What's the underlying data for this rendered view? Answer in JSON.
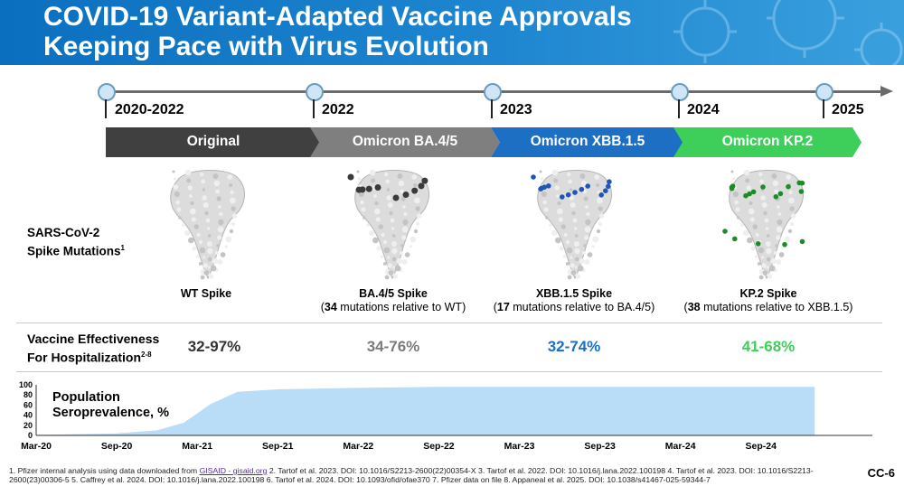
{
  "title": {
    "line1": "COVID-19 Variant-Adapted Vaccine Approvals",
    "line2": "Keeping Pace with Virus Evolution"
  },
  "timeline": {
    "years": [
      "2020-2022",
      "2022",
      "2023",
      "2024",
      "2025"
    ]
  },
  "variants": [
    {
      "label": "Original",
      "color": "#404040"
    },
    {
      "label": "Omicron BA.4/5",
      "color": "#7f7f7f"
    },
    {
      "label": "Omicron XBB.1.5",
      "color": "#1c6fc2"
    },
    {
      "label": "Omicron KP.2",
      "color": "#3ecf5a"
    }
  ],
  "spike_row_label": {
    "line1": "SARS-CoV-2",
    "line2": "Spike Mutations",
    "sup": "1"
  },
  "spikes": [
    {
      "name": "WT Spike",
      "count": "",
      "rest": "",
      "mutation_color": ""
    },
    {
      "name": "BA.4/5 Spike",
      "count": "34",
      "rest": " mutations relative to WT)",
      "mutation_color": "#3a3a3a"
    },
    {
      "name": "XBB.1.5 Spike",
      "count": "17",
      "rest": " mutations relative to BA.4/5)",
      "mutation_color": "#1f55b8"
    },
    {
      "name": "KP.2 Spike",
      "count": "38",
      "rest": " mutations relative to XBB.1.5)",
      "mutation_color": "#1e8a2a"
    }
  ],
  "ve_row_label": {
    "line1": "Vaccine Effectiveness",
    "line2": "For Hospitalization",
    "sup": "2-8"
  },
  "effectiveness": [
    {
      "value": "32-97%",
      "color": "#333333"
    },
    {
      "value": "34-76%",
      "color": "#7a7a7a"
    },
    {
      "value": "32-74%",
      "color": "#1c6fc2"
    },
    {
      "value": "41-68%",
      "color": "#3ecf5a"
    }
  ],
  "chart_data": {
    "type": "area",
    "title": "Population Seroprevalence, %",
    "ylim": [
      0,
      100
    ],
    "yticks": [
      0,
      20,
      40,
      60,
      80,
      100
    ],
    "xticks": [
      "Mar-20",
      "Sep-20",
      "Mar-21",
      "Sep-21",
      "Mar-22",
      "Sep-22",
      "Mar-23",
      "Sep-23",
      "Mar-24",
      "Sep-24"
    ],
    "x": [
      "Mar-20",
      "Sep-20",
      "Dec-20",
      "Feb-21",
      "Apr-21",
      "Jun-21",
      "Sep-21",
      "Mar-22",
      "Sep-22",
      "Mar-23",
      "Sep-23",
      "Mar-24",
      "Sep-24",
      "Jan-25"
    ],
    "values": [
      1,
      4,
      10,
      25,
      62,
      86,
      91,
      94,
      96,
      96,
      96,
      96,
      96,
      96
    ],
    "fill_color": "#b9dcf7"
  },
  "footnote": {
    "pre": "1. Pfizer internal analysis using data downloaded from ",
    "link": "GISAID - gisaid.org",
    "post": " 2. Tartof et al. 2023. DOI: 10.1016/S2213-2600(22)00354-X 3. Tartof et al. 2022. DOI: 10.1016/j.lana.2022.100198 4. Tartof et al. 2023. DOI: 10.1016/S2213-2600(23)00306-5 5. Caffrey et al. 2024. DOI: 10.1016/j.lana.2022.100198 6. Tartof et al. 2024. DOI: 10.1093/ofid/ofae370 7. Pfizer data on file 8. Appaneal et al. 2025. DOI: 10.1038/s41467-025-59344-7"
  },
  "slide_number": "CC-6"
}
